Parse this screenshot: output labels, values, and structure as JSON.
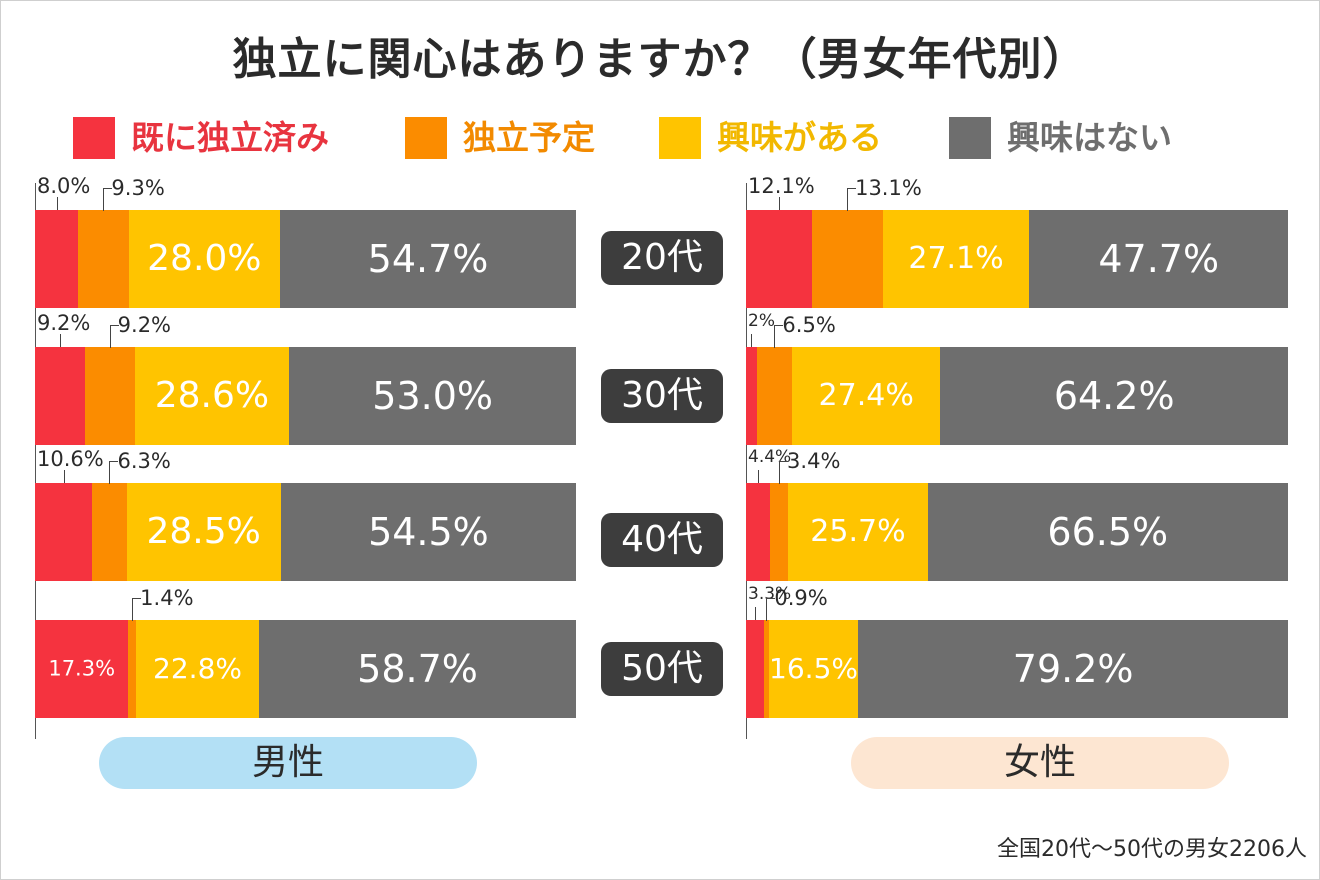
{
  "title": "独立に関心はありますか？（男女年代別）",
  "footnote": "全国20代〜50代の男女2206人",
  "legend": [
    {
      "label": "既に独立済み",
      "color": "#f5333f",
      "label_color": "#e8343f"
    },
    {
      "label": "独立予定",
      "color": "#fb8c00",
      "label_color": "#f28a00"
    },
    {
      "label": "興味がある",
      "color": "#ffc400",
      "label_color": "#f2b800"
    },
    {
      "label": "興味はない",
      "color": "#6e6e6e",
      "label_color": "#6e6e6e"
    }
  ],
  "chart_data": {
    "type": "bar",
    "orientation": "horizontal",
    "stacked": true,
    "unit": "%",
    "categories": [
      "20代",
      "30代",
      "40代",
      "50代"
    ],
    "groups": [
      {
        "label": "男性",
        "pill_color": "#b3e0f5",
        "series": [
          {
            "name": "既に独立済み",
            "values": [
              8.0,
              9.2,
              10.6,
              17.3
            ],
            "labels": [
              "8.0%",
              "9.2%",
              "10.6%",
              "17.3%"
            ]
          },
          {
            "name": "独立予定",
            "values": [
              9.3,
              9.2,
              6.3,
              1.4
            ],
            "labels": [
              "9.3%",
              "9.2%",
              "6.3%",
              "1.4%"
            ]
          },
          {
            "name": "興味がある",
            "values": [
              28.0,
              28.6,
              28.5,
              22.8
            ],
            "labels": [
              "28.0%",
              "28.6%",
              "28.5%",
              "22.8%"
            ]
          },
          {
            "name": "興味はない",
            "values": [
              54.7,
              53.0,
              54.5,
              58.7
            ],
            "labels": [
              "54.7%",
              "53.0%",
              "54.5%",
              "58.7%"
            ]
          }
        ]
      },
      {
        "label": "女性",
        "pill_color": "#fde6d2",
        "series": [
          {
            "name": "既に独立済み",
            "values": [
              12.1,
              2.0,
              4.4,
              3.3
            ],
            "labels": [
              "12.1%",
              "2%",
              "4.4%",
              "3.3%"
            ]
          },
          {
            "name": "独立予定",
            "values": [
              13.1,
              6.5,
              3.4,
              0.9
            ],
            "labels": [
              "13.1%",
              "6.5%",
              "3.4%",
              "0.9%"
            ]
          },
          {
            "name": "興味がある",
            "values": [
              27.1,
              27.4,
              25.7,
              16.5
            ],
            "labels": [
              "27.1%",
              "27.4%",
              "25.7%",
              "16.5%"
            ]
          },
          {
            "name": "興味はない",
            "values": [
              47.7,
              64.2,
              66.5,
              79.2
            ],
            "labels": [
              "47.7%",
              "64.2%",
              "66.5%",
              "79.2%"
            ]
          }
        ]
      }
    ]
  }
}
